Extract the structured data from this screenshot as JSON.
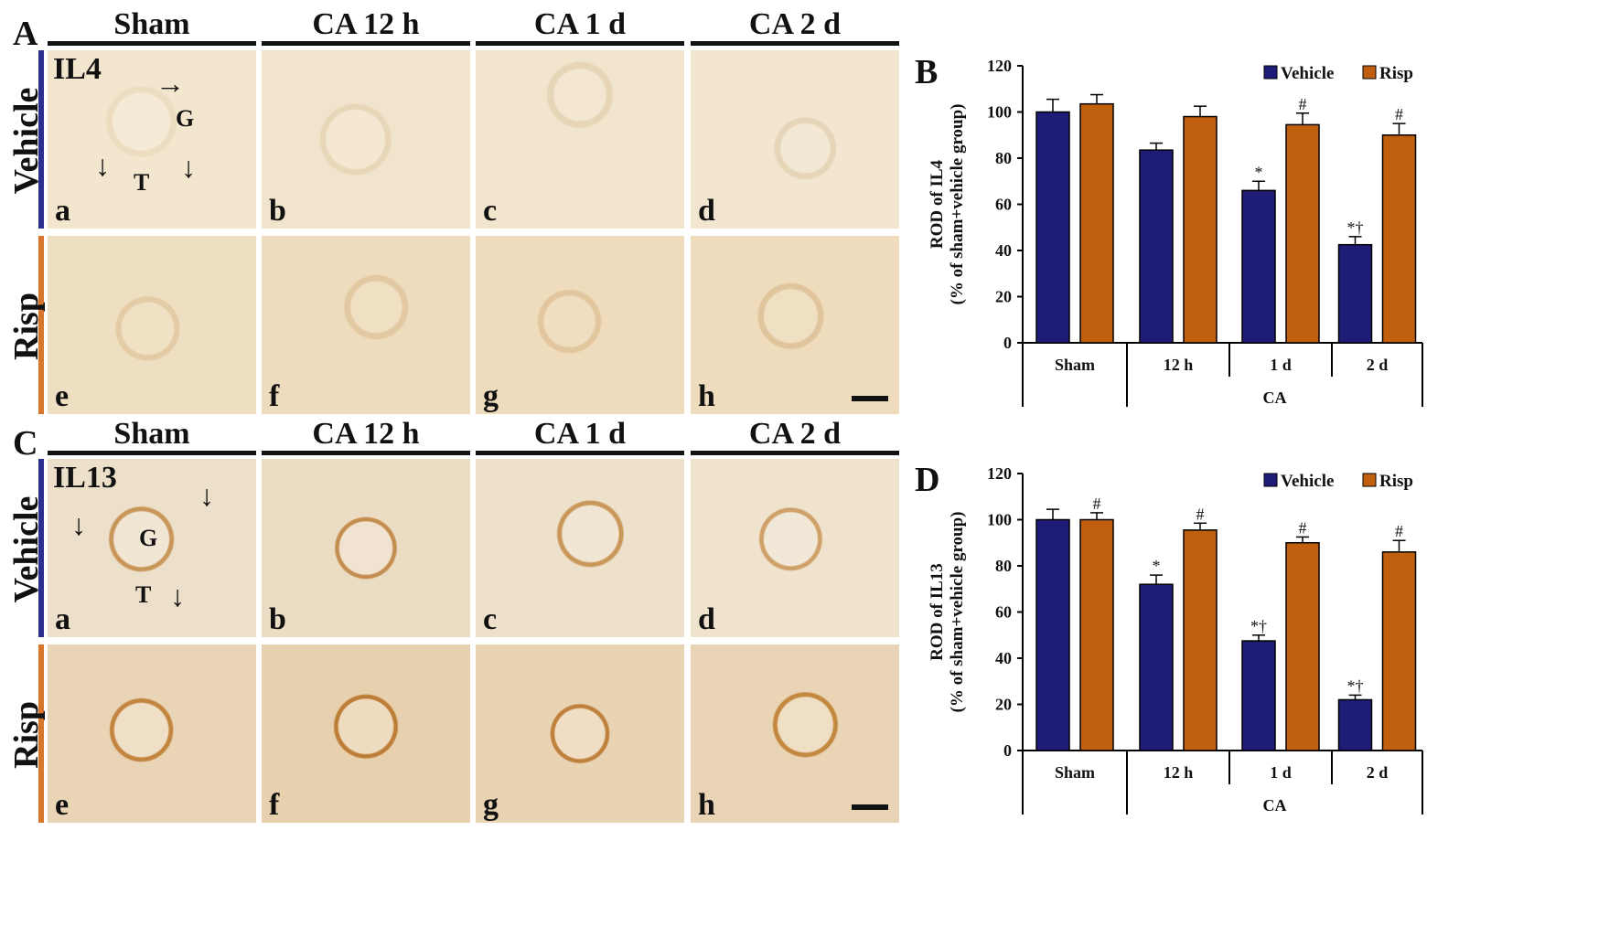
{
  "panels": {
    "A": "A",
    "B": "B",
    "C": "C",
    "D": "D"
  },
  "column_headers": [
    "Sham",
    "CA 12 h",
    "CA 1 d",
    "CA 2 d"
  ],
  "row_labels": [
    "Vehicle",
    "Risp"
  ],
  "stain_labels": [
    "IL4",
    "IL13"
  ],
  "sub_labels": [
    "a",
    "b",
    "c",
    "d",
    "e",
    "f",
    "g",
    "h"
  ],
  "annotations": {
    "glomerulus": "G",
    "tubule": "T"
  },
  "colors": {
    "vehicle": "#1f1c78",
    "risp": "#c0600f",
    "vehicle_strip": "#2b2f8f",
    "risp_strip": "#d9762e",
    "il4_tissue": "#efe1c8",
    "il13_tissue": "#e4c293"
  },
  "icons": [
    "arrow-icon",
    "scale-bar"
  ],
  "chart_data": [
    {
      "type": "bar",
      "panel": "B",
      "categories": [
        "Sham",
        "12 h",
        "1 d",
        "2 d"
      ],
      "group_label": "CA",
      "ylabel": "ROD of IL4",
      "ylabel2": "(% of sham+vehicle group)",
      "ylim": [
        0,
        120
      ],
      "yticks": [
        0,
        20,
        40,
        60,
        80,
        100,
        120
      ],
      "legend_position": "top-right",
      "series": [
        {
          "name": "Vehicle",
          "values": [
            100,
            83.5,
            66,
            42.5
          ],
          "errors": [
            5.5,
            3,
            4,
            3.5
          ],
          "marks": [
            "",
            "",
            "*",
            "*†"
          ]
        },
        {
          "name": "Risp",
          "values": [
            103.5,
            98,
            94.5,
            90
          ],
          "errors": [
            4,
            4.5,
            5,
            5
          ],
          "marks": [
            "",
            "",
            "#",
            "#"
          ]
        }
      ]
    },
    {
      "type": "bar",
      "panel": "D",
      "categories": [
        "Sham",
        "12 h",
        "1 d",
        "2 d"
      ],
      "group_label": "CA",
      "ylabel": "ROD of IL13",
      "ylabel2": "(% of sham+vehicle group)",
      "ylim": [
        0,
        120
      ],
      "yticks": [
        0,
        20,
        40,
        60,
        80,
        100,
        120
      ],
      "legend_position": "top-right",
      "series": [
        {
          "name": "Vehicle",
          "values": [
            100,
            72,
            47.5,
            22
          ],
          "errors": [
            4.5,
            4,
            2.5,
            2
          ],
          "marks": [
            "",
            "*",
            "*†",
            "*†"
          ]
        },
        {
          "name": "Risp",
          "values": [
            100,
            95.5,
            90,
            86
          ],
          "errors": [
            3,
            3,
            2.5,
            5
          ],
          "marks": [
            "#",
            "#",
            "#",
            "#"
          ]
        }
      ]
    }
  ]
}
